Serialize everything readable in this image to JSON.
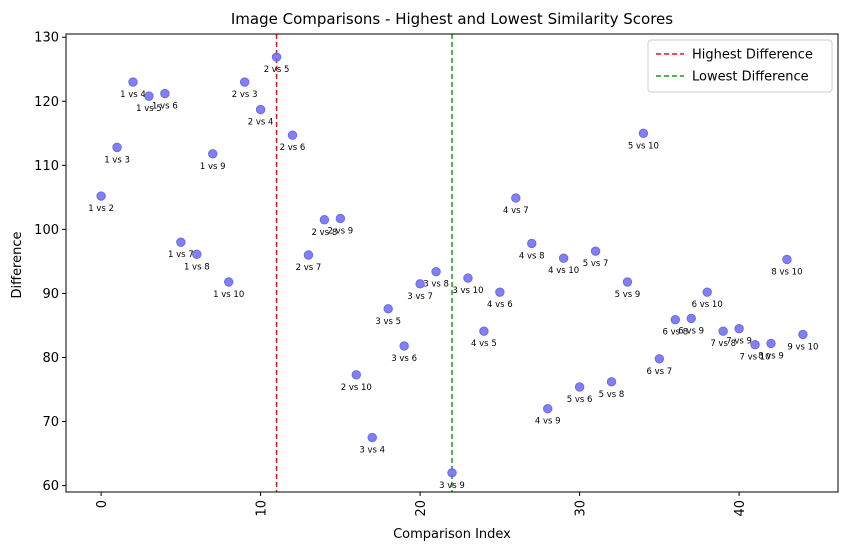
{
  "chart_data": {
    "type": "scatter",
    "title": "Image Comparisons - Highest and Lowest Similarity Scores",
    "xlabel": "Comparison Index",
    "ylabel": "Difference",
    "xlim": [
      -2.2,
      46.2
    ],
    "ylim": [
      59,
      130.5
    ],
    "xticks": [
      0,
      10,
      20,
      30,
      40
    ],
    "yticks": [
      60,
      70,
      80,
      90,
      100,
      110,
      120,
      130
    ],
    "x_tick_rotation": 90,
    "grid": false,
    "legend_position": "top-right",
    "point_color": "#6a6aee",
    "points": [
      {
        "x": 0,
        "y": 105.2,
        "label": "1 vs 2"
      },
      {
        "x": 1,
        "y": 112.8,
        "label": "1 vs 3"
      },
      {
        "x": 2,
        "y": 123.0,
        "label": "1 vs 4"
      },
      {
        "x": 3,
        "y": 120.8,
        "label": "1 vs 5"
      },
      {
        "x": 4,
        "y": 121.2,
        "label": "1 vs 6"
      },
      {
        "x": 5,
        "y": 98.0,
        "label": "1 vs 7"
      },
      {
        "x": 6,
        "y": 96.1,
        "label": "1 vs 8"
      },
      {
        "x": 7,
        "y": 111.8,
        "label": "1 vs 9"
      },
      {
        "x": 8,
        "y": 91.8,
        "label": "1 vs 10"
      },
      {
        "x": 9,
        "y": 123.0,
        "label": "2 vs 3"
      },
      {
        "x": 10,
        "y": 118.7,
        "label": "2 vs 4"
      },
      {
        "x": 11,
        "y": 126.9,
        "label": "2 vs 5"
      },
      {
        "x": 12,
        "y": 114.7,
        "label": "2 vs 6"
      },
      {
        "x": 13,
        "y": 96.0,
        "label": "2 vs 7"
      },
      {
        "x": 14,
        "y": 101.5,
        "label": "2 vs 8"
      },
      {
        "x": 15,
        "y": 101.7,
        "label": "2 vs 9"
      },
      {
        "x": 16,
        "y": 77.3,
        "label": "2 vs 10"
      },
      {
        "x": 17,
        "y": 67.5,
        "label": "3 vs 4"
      },
      {
        "x": 18,
        "y": 87.6,
        "label": "3 vs 5"
      },
      {
        "x": 19,
        "y": 81.8,
        "label": "3 vs 6"
      },
      {
        "x": 20,
        "y": 91.5,
        "label": "3 vs 7"
      },
      {
        "x": 21,
        "y": 93.4,
        "label": "3 vs 8"
      },
      {
        "x": 22,
        "y": 62.0,
        "label": "3 vs 9"
      },
      {
        "x": 23,
        "y": 92.4,
        "label": "3 vs 10"
      },
      {
        "x": 24,
        "y": 84.1,
        "label": "4 vs 5"
      },
      {
        "x": 25,
        "y": 90.2,
        "label": "4 vs 6"
      },
      {
        "x": 26,
        "y": 104.9,
        "label": "4 vs 7"
      },
      {
        "x": 27,
        "y": 97.8,
        "label": "4 vs 8"
      },
      {
        "x": 28,
        "y": 72.0,
        "label": "4 vs 9"
      },
      {
        "x": 29,
        "y": 95.5,
        "label": "4 vs 10"
      },
      {
        "x": 30,
        "y": 75.4,
        "label": "5 vs 6"
      },
      {
        "x": 31,
        "y": 96.6,
        "label": "5 vs 7"
      },
      {
        "x": 32,
        "y": 76.2,
        "label": "5 vs 8"
      },
      {
        "x": 33,
        "y": 91.8,
        "label": "5 vs 9"
      },
      {
        "x": 34,
        "y": 115.0,
        "label": "5 vs 10"
      },
      {
        "x": 35,
        "y": 79.8,
        "label": "6 vs 7"
      },
      {
        "x": 36,
        "y": 85.9,
        "label": "6 vs 8"
      },
      {
        "x": 37,
        "y": 86.1,
        "label": "6 vs 9"
      },
      {
        "x": 38,
        "y": 90.2,
        "label": "6 vs 10"
      },
      {
        "x": 39,
        "y": 84.1,
        "label": "7 vs 8"
      },
      {
        "x": 40,
        "y": 84.5,
        "label": "7 vs 9"
      },
      {
        "x": 41,
        "y": 82.0,
        "label": "7 vs 10"
      },
      {
        "x": 42,
        "y": 82.2,
        "label": "8 vs 9"
      },
      {
        "x": 43,
        "y": 95.3,
        "label": "8 vs 10"
      },
      {
        "x": 44,
        "y": 83.6,
        "label": "9 vs 10"
      }
    ],
    "vlines": [
      {
        "x": 11,
        "label": "Highest Difference",
        "color": "#e31a1c"
      },
      {
        "x": 22,
        "label": "Lowest Difference",
        "color": "#1a9a1a"
      }
    ]
  }
}
